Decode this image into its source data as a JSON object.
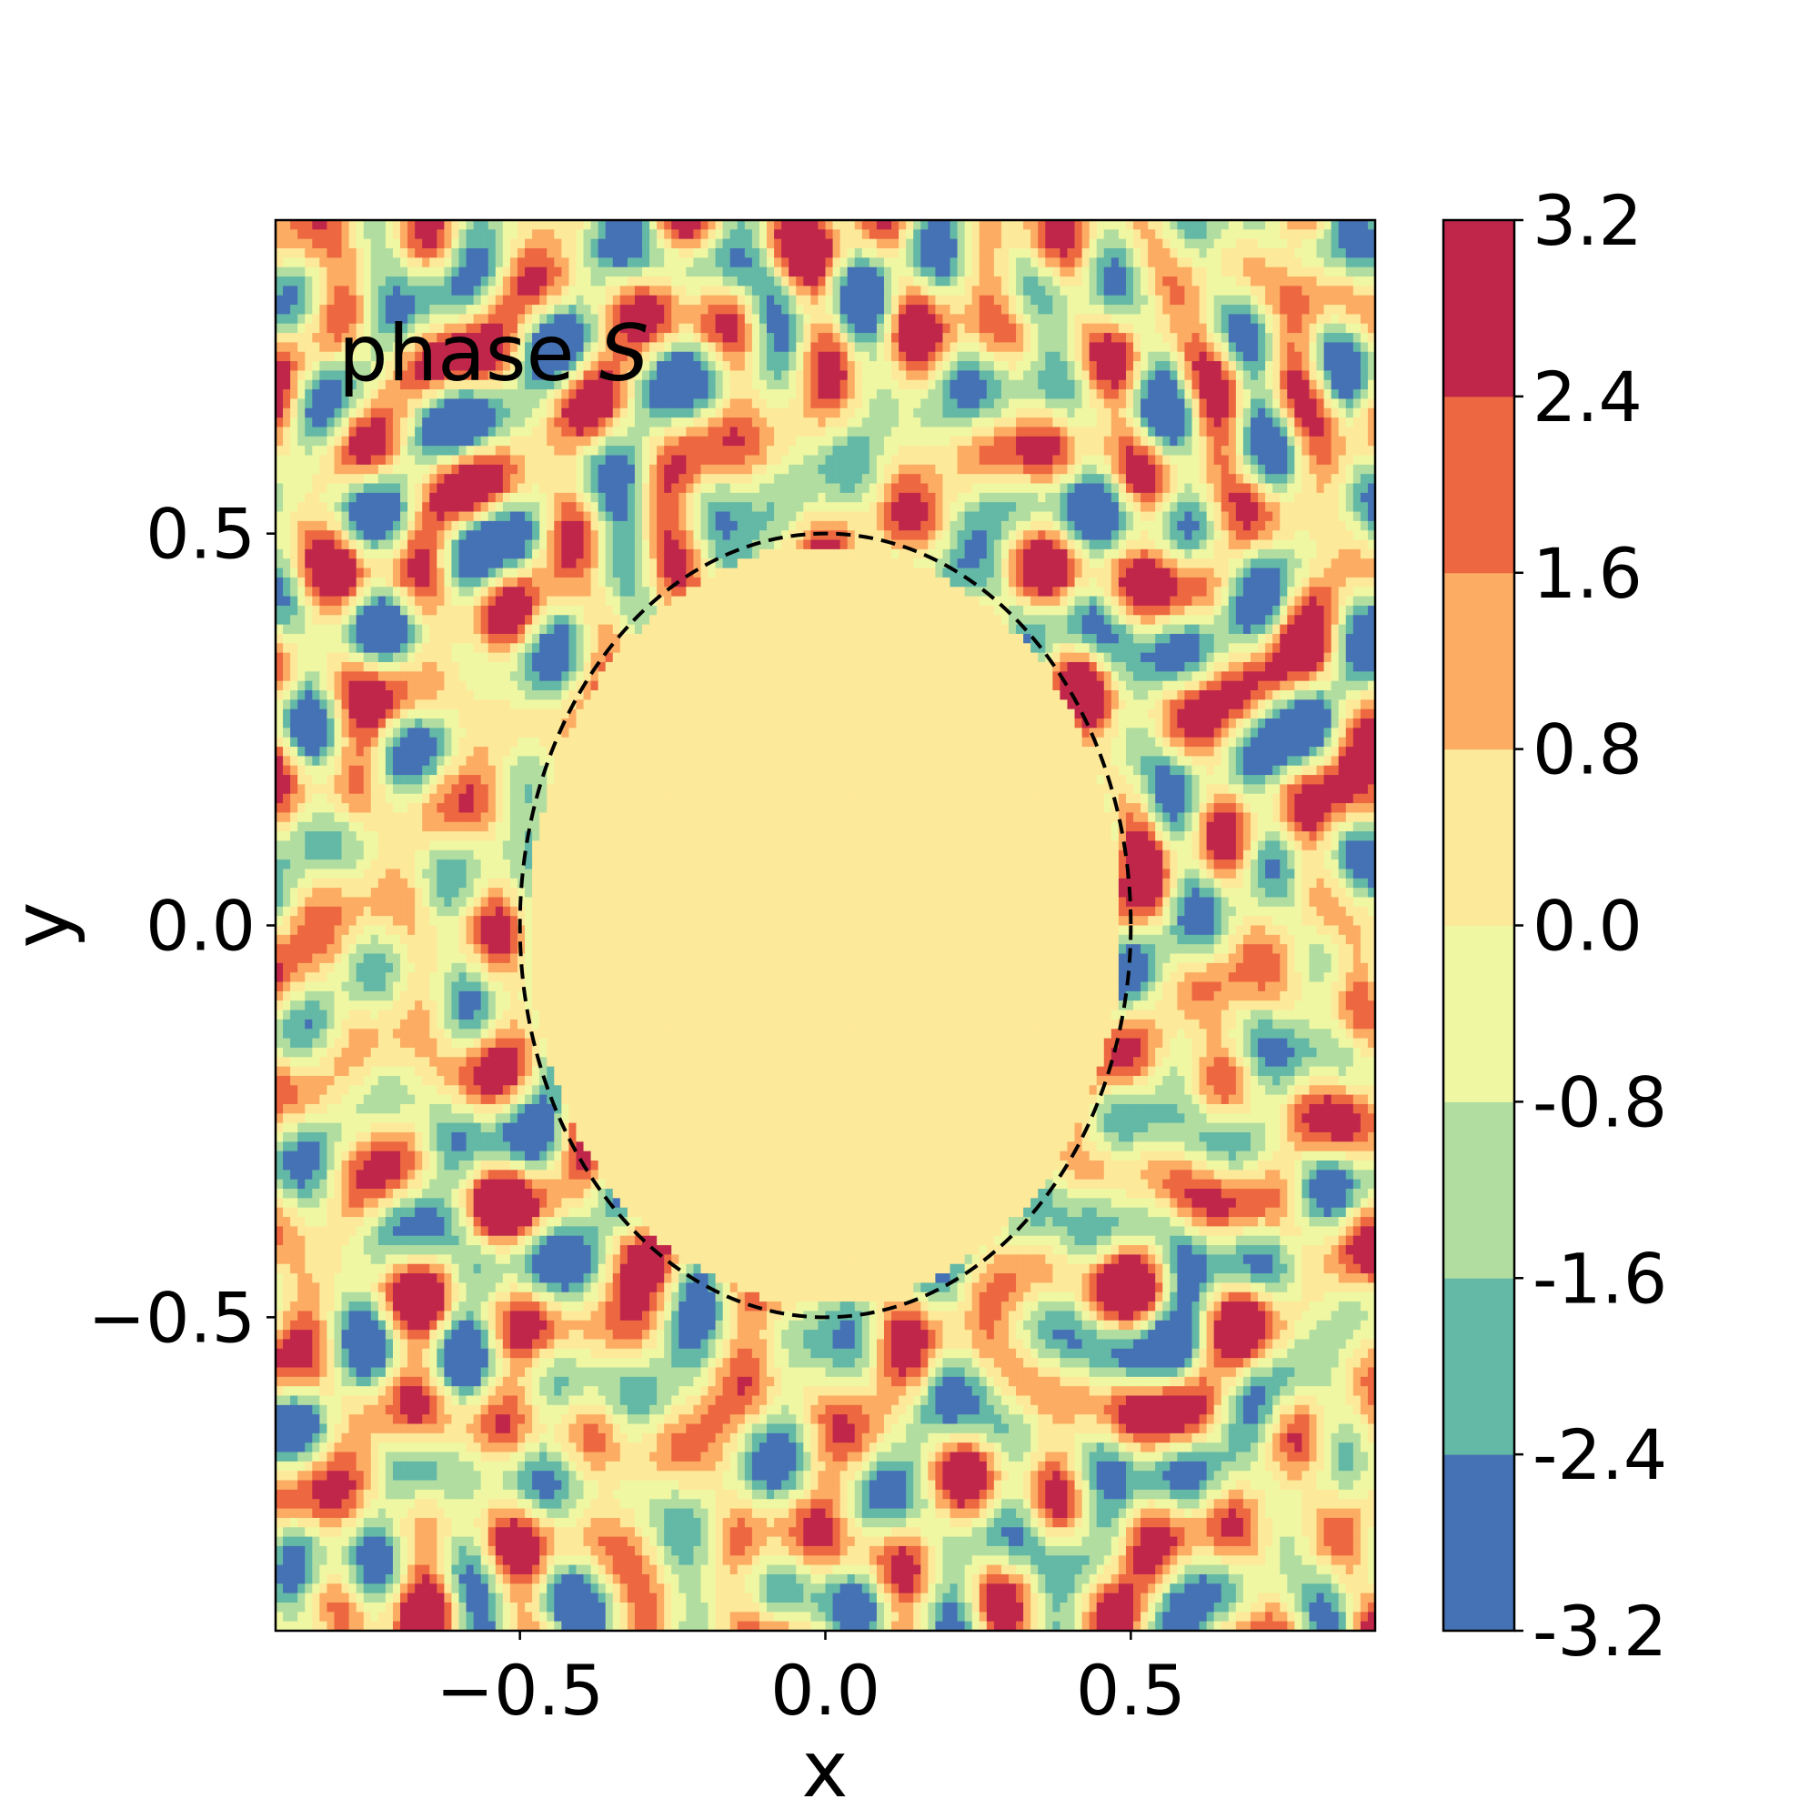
{
  "chart_data": {
    "type": "heatmap",
    "subtype": "filled-contour",
    "annotation": {
      "text": "phase ",
      "symbol": "S"
    },
    "xlabel": "x",
    "ylabel": "y",
    "xlim": [
      -0.9,
      0.9
    ],
    "ylim": [
      -0.9,
      0.9
    ],
    "xticks": [
      {
        "value": -0.5,
        "label": "−0.5"
      },
      {
        "value": 0.0,
        "label": "0.0"
      },
      {
        "value": 0.5,
        "label": "0.5"
      }
    ],
    "yticks": [
      {
        "value": -0.5,
        "label": "−0.5"
      },
      {
        "value": 0.0,
        "label": "0.0"
      },
      {
        "value": 0.5,
        "label": "0.5"
      }
    ],
    "colorbar": {
      "range": [
        -3.2,
        3.2
      ],
      "ticks": [
        {
          "value": 3.2,
          "label": "3.2"
        },
        {
          "value": 2.4,
          "label": "2.4"
        },
        {
          "value": 1.6,
          "label": "1.6"
        },
        {
          "value": 0.8,
          "label": "0.8"
        },
        {
          "value": 0.0,
          "label": "0.0"
        },
        {
          "value": -0.8,
          "label": "-0.8"
        },
        {
          "value": -1.6,
          "label": "-1.6"
        },
        {
          "value": -2.4,
          "label": "-2.4"
        },
        {
          "value": -3.2,
          "label": "-3.2"
        }
      ],
      "levels": [
        {
          "min": -3.2,
          "max": -2.4,
          "color": "#4572b4"
        },
        {
          "min": -2.4,
          "max": -1.6,
          "color": "#63b8a6"
        },
        {
          "min": -1.6,
          "max": -0.8,
          "color": "#b1dea0"
        },
        {
          "min": -0.8,
          "max": 0.0,
          "color": "#eff7a3"
        },
        {
          "min": 0.0,
          "max": 0.8,
          "color": "#fde99a"
        },
        {
          "min": 0.8,
          "max": 1.6,
          "color": "#fcac63"
        },
        {
          "min": 1.6,
          "max": 2.4,
          "color": "#ed6840"
        },
        {
          "min": 2.4,
          "max": 3.2,
          "color": "#c0264a"
        }
      ]
    },
    "field": {
      "inside_circle_value": 0.4,
      "outside": "random phase in [-3.2, 3.2]"
    },
    "circle": {
      "center": [
        0.0,
        0.0
      ],
      "radius": 0.5,
      "style": "dashed",
      "color": "#000000"
    },
    "grid": false
  }
}
